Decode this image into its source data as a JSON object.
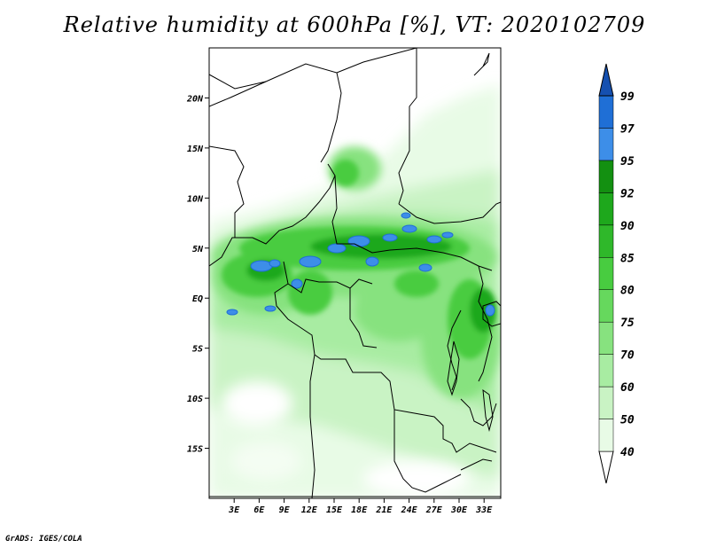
{
  "title": "Relative humidity at 600hPa [%], VT: 2020102709",
  "credit": "GrADS: IGES/COLA",
  "map": {
    "lon_labels": [
      "3E",
      "6E",
      "9E",
      "12E",
      "15E",
      "18E",
      "21E",
      "24E",
      "27E",
      "30E",
      "33E"
    ],
    "lat_labels": [
      "20N",
      "15N",
      "10N",
      "5N",
      "EQ",
      "5S",
      "10S",
      "15S"
    ],
    "lon_values": [
      3,
      6,
      9,
      12,
      15,
      18,
      21,
      24,
      27,
      30,
      33
    ],
    "lat_values": [
      20,
      15,
      10,
      5,
      0,
      -5,
      -10,
      -15
    ],
    "lon_range": [
      0,
      35
    ],
    "lat_range": [
      -20,
      25
    ]
  },
  "colorbar": {
    "levels": [
      "40",
      "50",
      "60",
      "70",
      "75",
      "80",
      "85",
      "90",
      "92",
      "95",
      "97",
      "99"
    ],
    "colors": [
      "#ffffff",
      "#e8fbe6",
      "#c9f3c4",
      "#a8eca2",
      "#87e27f",
      "#66d85d",
      "#48cc40",
      "#2fb82a",
      "#1ea81c",
      "#139011",
      "#3d8ee8",
      "#1f6fd6",
      "#1550b0"
    ]
  }
}
